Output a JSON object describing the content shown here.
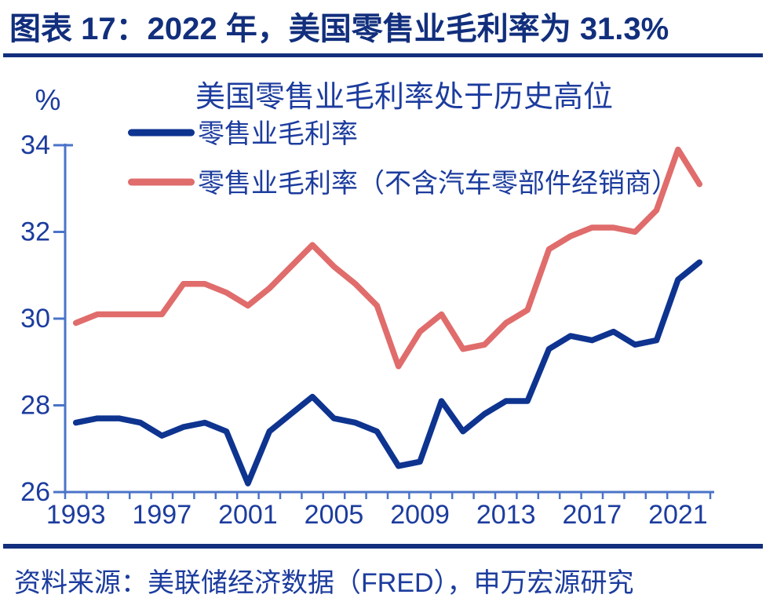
{
  "header": {
    "title": "图表 17：2022 年，美国零售业毛利率为 31.3%"
  },
  "source": {
    "text": "资料来源：美联储经济数据（FRED），申万宏源研究"
  },
  "colors": {
    "header_navy": "#122f7d",
    "text_blue": "#1c3c9e",
    "axis_blue": "#4a74c8",
    "line_blue": "#0e3490",
    "line_red": "#e06c6c",
    "background": "#ffffff"
  },
  "chart_data": {
    "type": "line",
    "title": "美国零售业毛利率处于历史高位",
    "unit_label": "%",
    "xlabel": "",
    "ylabel": "%",
    "ylim": [
      26,
      34
    ],
    "grid": false,
    "legend_position": "top-left",
    "x": [
      1993,
      1994,
      1995,
      1996,
      1997,
      1998,
      1999,
      2000,
      2001,
      2002,
      2003,
      2004,
      2005,
      2006,
      2007,
      2008,
      2009,
      2010,
      2011,
      2012,
      2013,
      2014,
      2015,
      2016,
      2017,
      2018,
      2019,
      2020,
      2021,
      2022
    ],
    "series": [
      {
        "name": "零售业毛利率",
        "color": "#0e3490",
        "values": [
          27.6,
          27.7,
          27.7,
          27.6,
          27.3,
          27.5,
          27.6,
          27.4,
          26.2,
          27.4,
          27.8,
          28.2,
          27.7,
          27.6,
          27.4,
          26.6,
          26.7,
          28.1,
          27.4,
          27.8,
          28.1,
          28.1,
          29.3,
          29.6,
          29.5,
          29.7,
          29.4,
          29.5,
          30.9,
          31.3
        ]
      },
      {
        "name": "零售业毛利率（不含汽车零部件经销商）",
        "color": "#e06c6c",
        "values": [
          29.9,
          30.1,
          30.1,
          30.1,
          30.1,
          30.8,
          30.8,
          30.6,
          30.3,
          30.7,
          31.2,
          31.7,
          31.2,
          30.8,
          30.3,
          28.9,
          29.7,
          30.1,
          29.3,
          29.4,
          29.9,
          30.2,
          31.6,
          31.9,
          32.1,
          32.1,
          32.0,
          32.5,
          33.9,
          33.1
        ]
      }
    ],
    "yticks": [
      26,
      28,
      30,
      32,
      34
    ],
    "x_tick_years": [
      1993,
      1997,
      2001,
      2005,
      2009,
      2013,
      2017,
      2021
    ]
  }
}
